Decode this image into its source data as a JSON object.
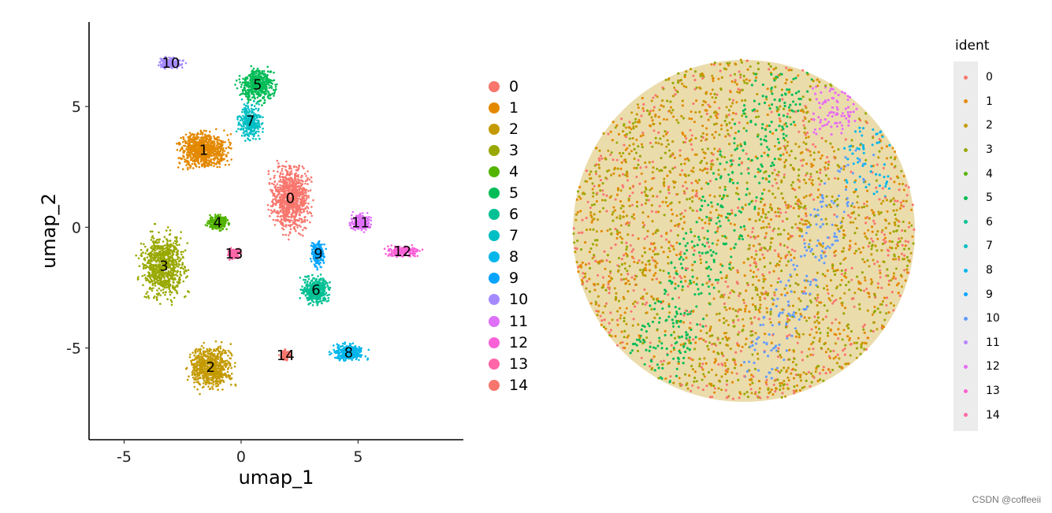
{
  "chart_data": [
    {
      "type": "scatter",
      "xlabel": "umap_1",
      "ylabel": "umap_2",
      "xlim": [
        -6.5,
        9.5
      ],
      "ylim": [
        -8.8,
        8.5
      ],
      "xticks": [
        -5,
        0,
        5
      ],
      "xtick_labels": [
        "-5",
        "0",
        "5"
      ],
      "yticks": [
        -5,
        0,
        5
      ],
      "ytick_labels": [
        "-5",
        "0",
        "5"
      ],
      "legend_position": "right",
      "series": [
        {
          "name": "0",
          "color": "#F8766D",
          "label_xy": [
            2.1,
            1.2
          ]
        },
        {
          "name": "1",
          "color": "#E38900",
          "label_xy": [
            -1.6,
            3.2
          ]
        },
        {
          "name": "2",
          "color": "#C49A00",
          "label_xy": [
            -1.3,
            -5.8
          ]
        },
        {
          "name": "3",
          "color": "#99A800",
          "label_xy": [
            -3.3,
            -1.6
          ]
        },
        {
          "name": "4",
          "color": "#53B400",
          "label_xy": [
            -1.0,
            0.2
          ]
        },
        {
          "name": "5",
          "color": "#00BC56",
          "label_xy": [
            0.7,
            5.9
          ]
        },
        {
          "name": "6",
          "color": "#00C094",
          "label_xy": [
            3.2,
            -2.6
          ]
        },
        {
          "name": "7",
          "color": "#00BFC4",
          "label_xy": [
            0.4,
            4.4
          ]
        },
        {
          "name": "8",
          "color": "#00B6EB",
          "label_xy": [
            4.6,
            -5.2
          ]
        },
        {
          "name": "9",
          "color": "#06A4FF",
          "label_xy": [
            3.3,
            -1.1
          ]
        },
        {
          "name": "10",
          "color": "#A58AFF",
          "label_xy": [
            -3.0,
            6.8
          ]
        },
        {
          "name": "11",
          "color": "#DF70F8",
          "label_xy": [
            5.1,
            0.2
          ]
        },
        {
          "name": "12",
          "color": "#FB61D7",
          "label_xy": [
            6.9,
            -1.0
          ]
        },
        {
          "name": "13",
          "color": "#FF66A8",
          "label_xy": [
            -0.3,
            -1.1
          ]
        },
        {
          "name": "14",
          "color": "#F8766D",
          "label_xy": [
            1.9,
            -5.3
          ]
        }
      ]
    },
    {
      "type": "scatter",
      "legend_title": "ident",
      "legend_position": "right",
      "series_names": [
        "0",
        "1",
        "2",
        "3",
        "4",
        "5",
        "6",
        "7",
        "8",
        "9",
        "10",
        "11",
        "12",
        "13",
        "14"
      ]
    }
  ],
  "legend": {
    "title": "ident",
    "items": [
      {
        "label": "0",
        "color": "#F8766D"
      },
      {
        "label": "1",
        "color": "#E38900"
      },
      {
        "label": "2",
        "color": "#C49A00"
      },
      {
        "label": "3",
        "color": "#99A800"
      },
      {
        "label": "4",
        "color": "#53B400"
      },
      {
        "label": "5",
        "color": "#00BC56"
      },
      {
        "label": "6",
        "color": "#00C094"
      },
      {
        "label": "7",
        "color": "#00BFC4"
      },
      {
        "label": "8",
        "color": "#00B6EB"
      },
      {
        "label": "9",
        "color": "#06A4FF"
      },
      {
        "label": "10",
        "color": "#619CFF"
      },
      {
        "label": "11",
        "color": "#B983FF"
      },
      {
        "label": "12",
        "color": "#E76BF3"
      },
      {
        "label": "13",
        "color": "#FD61D1"
      },
      {
        "label": "14",
        "color": "#FF67A4"
      }
    ]
  },
  "watermark": "CSDN @coffeeii"
}
